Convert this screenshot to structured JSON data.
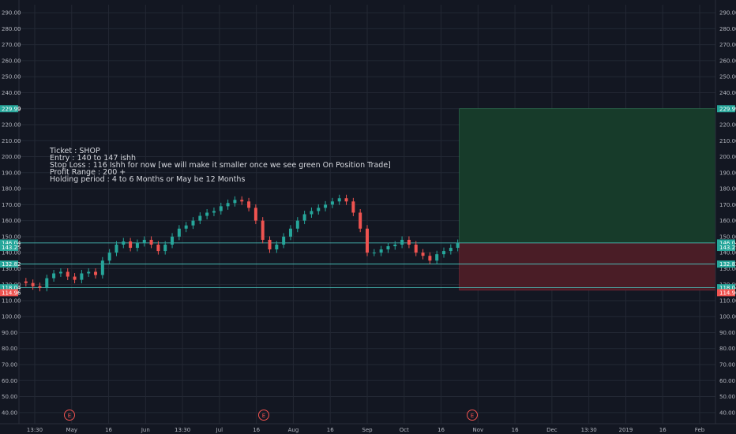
{
  "chart_data": {
    "type": "candlestick",
    "symbol_note": [
      "Ticket : SHOP",
      "Entry : 140 to 147 ishh",
      "Stop Loss : 116 Ishh for now [we will make it smaller once we see green On Position Trade]",
      "Profit Range : 200 +",
      "Holding period : 4 to 6 Months or May be 12 Months"
    ],
    "y_ticks": [
      40,
      50,
      60,
      70,
      80,
      90,
      100,
      110,
      120,
      130,
      140,
      150,
      160,
      170,
      180,
      190,
      200,
      210,
      220,
      230,
      240,
      250,
      260,
      270,
      280,
      290
    ],
    "ylim": [
      33,
      295
    ],
    "x_ticks": [
      "13:30",
      "May",
      "16",
      "Jun",
      "13:30",
      "Jul",
      "16",
      "Aug",
      "16",
      "Sep",
      "Oct",
      "16",
      "Nov",
      "16",
      "Dec",
      "13:30",
      "2019",
      "16",
      "Feb"
    ],
    "price_tags": [
      {
        "value": 229.99,
        "label": "229.99",
        "color": "#26a69a"
      },
      {
        "value": 146.04,
        "label": "146.04",
        "color": "#26a69a"
      },
      {
        "value": 143.25,
        "label": "143.25",
        "color": "#26a69a"
      },
      {
        "value": 132.82,
        "label": "132.82",
        "color": "#26a69a"
      },
      {
        "value": 118.04,
        "label": "118.04",
        "color": "#26a69a"
      },
      {
        "value": 114.96,
        "label": "114.96",
        "color": "#ef5350"
      }
    ],
    "horizontal_lines": [
      146.04,
      132.82,
      118.04
    ],
    "position": {
      "entry": 146.04,
      "target": 229.99,
      "stop": 116.5
    },
    "earnings_markers": [
      "E",
      "E",
      "E"
    ],
    "close_series": [
      [
        0,
        122
      ],
      [
        2,
        121
      ],
      [
        4,
        119
      ],
      [
        6,
        118
      ],
      [
        8,
        124
      ],
      [
        10,
        127
      ],
      [
        12,
        128
      ],
      [
        14,
        125
      ],
      [
        16,
        123
      ],
      [
        18,
        127
      ],
      [
        20,
        128
      ],
      [
        22,
        126
      ],
      [
        24,
        135
      ],
      [
        26,
        140
      ],
      [
        28,
        145
      ],
      [
        30,
        147
      ],
      [
        32,
        143
      ],
      [
        34,
        146
      ],
      [
        36,
        148
      ],
      [
        38,
        145
      ],
      [
        40,
        141
      ],
      [
        42,
        145
      ],
      [
        44,
        150
      ],
      [
        46,
        155
      ],
      [
        48,
        157
      ],
      [
        50,
        160
      ],
      [
        52,
        163
      ],
      [
        54,
        165
      ],
      [
        56,
        166
      ],
      [
        58,
        169
      ],
      [
        60,
        171
      ],
      [
        62,
        173
      ],
      [
        64,
        172
      ],
      [
        66,
        168
      ],
      [
        68,
        160
      ],
      [
        70,
        148
      ],
      [
        72,
        142
      ],
      [
        74,
        145
      ],
      [
        76,
        150
      ],
      [
        78,
        155
      ],
      [
        80,
        160
      ],
      [
        82,
        164
      ],
      [
        84,
        166
      ],
      [
        86,
        168
      ],
      [
        88,
        170
      ],
      [
        90,
        172
      ],
      [
        92,
        174
      ],
      [
        94,
        172
      ],
      [
        96,
        165
      ],
      [
        98,
        155
      ],
      [
        100,
        140
      ],
      [
        102,
        140
      ],
      [
        104,
        142
      ],
      [
        106,
        144
      ],
      [
        108,
        145
      ],
      [
        110,
        148
      ],
      [
        112,
        145
      ],
      [
        114,
        140
      ],
      [
        116,
        138
      ],
      [
        118,
        135
      ],
      [
        120,
        139
      ],
      [
        122,
        141
      ],
      [
        124,
        143
      ],
      [
        126,
        146
      ]
    ],
    "x_domain": [
      0,
      200
    ],
    "series_end_x": 126,
    "colors": {
      "up": "#26a69a",
      "down": "#ef5350",
      "profit_zone": "#173b2a",
      "loss_zone": "#4a1d26",
      "background": "#131722",
      "grid": "#232834"
    }
  }
}
